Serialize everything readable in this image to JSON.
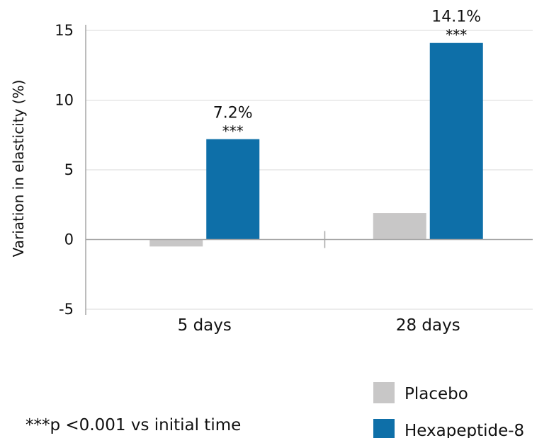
{
  "chart_data": {
    "type": "bar",
    "categories": [
      "5 days",
      "28 days"
    ],
    "series": [
      {
        "name": "Placebo",
        "color": "#c8c7c7",
        "values": [
          -0.5,
          1.9
        ]
      },
      {
        "name": "Hexapeptide-8",
        "color": "#0e6fa8",
        "values": [
          7.2,
          14.1
        ]
      }
    ],
    "data_labels": [
      {
        "category": "5 days",
        "series": "Hexapeptide-8",
        "value_text": "7.2%",
        "significance": "***"
      },
      {
        "category": "28 days",
        "series": "Hexapeptide-8",
        "value_text": "14.1%",
        "significance": "***"
      }
    ],
    "ylabel": "Variation in elasticity  (%)",
    "xlabel": "",
    "title": "",
    "ylim": [
      -5,
      15
    ],
    "yticks": [
      -5,
      0,
      5,
      10,
      15
    ],
    "grid": true,
    "legend_position": "bottom-right"
  },
  "footnote": "***p <0.001 vs initial time"
}
